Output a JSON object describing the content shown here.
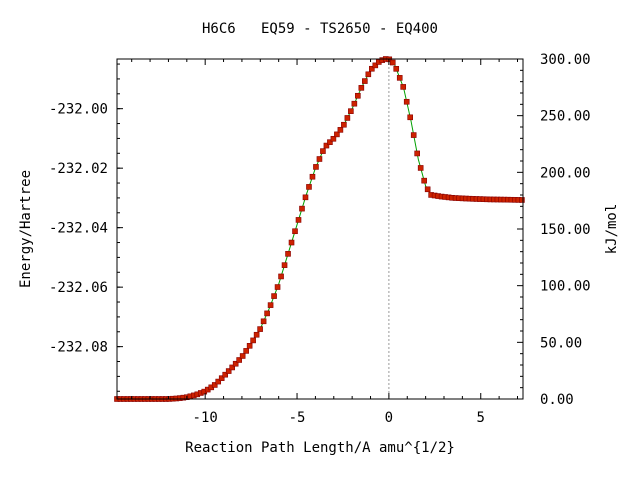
{
  "chart_data": {
    "type": "line",
    "title": "H6C6   EQ59 - TS2650 - EQ400",
    "xlabel": "Reaction Path Length/A amu^{1/2}",
    "ylabel": "Energy/Hartree",
    "y2label": "kJ/mol",
    "xlim": [
      -14.8,
      7.3
    ],
    "ylim": [
      -232.0976,
      -231.9833
    ],
    "y2lim": [
      0,
      300
    ],
    "x_ticks": [
      {
        "value": -10,
        "label": "-10"
      },
      {
        "value": -5,
        "label": "-5"
      },
      {
        "value": 0,
        "label": "0"
      },
      {
        "value": 5,
        "label": "5"
      }
    ],
    "y_ticks": [
      {
        "value": -232.0,
        "label": "-232.00"
      },
      {
        "value": -232.02,
        "label": "-232.02"
      },
      {
        "value": -232.04,
        "label": "-232.04"
      },
      {
        "value": -232.06,
        "label": "-232.06"
      },
      {
        "value": -232.08,
        "label": "-232.08"
      }
    ],
    "y2_ticks": [
      {
        "value": 0,
        "label": "0.00"
      },
      {
        "value": 50,
        "label": "50.00"
      },
      {
        "value": 100,
        "label": "100.00"
      },
      {
        "value": 150,
        "label": "150.00"
      },
      {
        "value": 200,
        "label": "200.00"
      },
      {
        "value": 250,
        "label": "250.00"
      },
      {
        "value": 300,
        "label": "300.00"
      }
    ],
    "ts_marker_x": 0,
    "line_color": "#00a000",
    "marker_color": "#cc2200",
    "marker_edge_color": "#880000",
    "ts_line_color": "#999999",
    "series": [
      {
        "x": [
          -14.8,
          -14.5,
          -14.0,
          -13.5,
          -13.0,
          -12.5,
          -12.0,
          -11.5,
          -11.0,
          -10.5,
          -10.0,
          -9.5,
          -9.0,
          -8.5,
          -8.0,
          -7.5,
          -7.0,
          -6.5,
          -6.0,
          -5.5,
          -5.0,
          -4.5,
          -4.0,
          -3.5,
          -3.0,
          -2.5,
          -2.0,
          -1.5,
          -1.0,
          -0.5,
          -0.2,
          0.0,
          0.3,
          0.8,
          1.2,
          1.6,
          2.0,
          2.3,
          2.8,
          3.5,
          4.5,
          5.5,
          6.5,
          7.3
        ],
        "y": [
          -232.0976,
          -232.0976,
          -232.0976,
          -232.0976,
          -232.0976,
          -232.0976,
          -232.0976,
          -232.0974,
          -232.097,
          -232.0962,
          -232.095,
          -232.093,
          -232.09,
          -232.0868,
          -232.0835,
          -232.079,
          -232.074,
          -232.067,
          -232.059,
          -232.049,
          -232.039,
          -232.029,
          -232.02,
          -232.013,
          -232.01,
          -232.006,
          -232.0,
          -231.993,
          -231.987,
          -231.984,
          -231.9833,
          -231.9833,
          -231.985,
          -231.993,
          -232.004,
          -232.017,
          -232.026,
          -232.029,
          -232.0295,
          -232.03,
          -232.0303,
          -232.0305,
          -232.0306,
          -232.0307
        ]
      }
    ]
  }
}
